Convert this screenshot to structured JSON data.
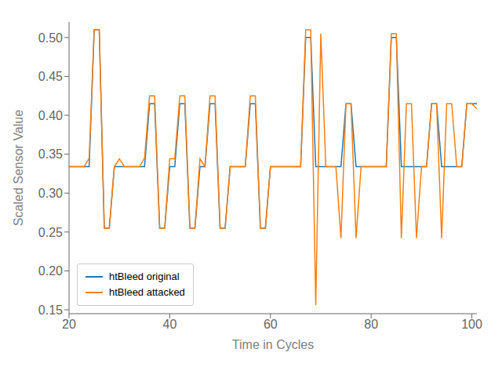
{
  "chart_data": {
    "type": "line",
    "xlabel": "Time in Cycles",
    "ylabel": "Scaled Sensor Value",
    "x": [
      20,
      21,
      22,
      23,
      24,
      25,
      26,
      27,
      28,
      29,
      30,
      31,
      32,
      33,
      34,
      35,
      36,
      37,
      38,
      39,
      40,
      41,
      42,
      43,
      44,
      45,
      46,
      47,
      48,
      49,
      50,
      51,
      52,
      53,
      54,
      55,
      56,
      57,
      58,
      59,
      60,
      61,
      62,
      63,
      64,
      65,
      66,
      67,
      68,
      69,
      70,
      71,
      72,
      73,
      74,
      75,
      76,
      77,
      78,
      79,
      80,
      81,
      82,
      83,
      84,
      85,
      86,
      87,
      88,
      89,
      90,
      91,
      92,
      93,
      94,
      95,
      96,
      97,
      98,
      99,
      100,
      101
    ],
    "series": [
      {
        "name": "htBleed original",
        "color": "#1f77b4",
        "values": [
          0.334,
          0.334,
          0.334,
          0.334,
          0.334,
          0.51,
          0.51,
          0.255,
          0.255,
          0.334,
          0.334,
          0.334,
          0.334,
          0.334,
          0.334,
          0.334,
          0.415,
          0.415,
          0.255,
          0.255,
          0.334,
          0.334,
          0.415,
          0.415,
          0.255,
          0.255,
          0.334,
          0.334,
          0.415,
          0.415,
          0.255,
          0.255,
          0.334,
          0.334,
          0.334,
          0.334,
          0.415,
          0.415,
          0.255,
          0.255,
          0.334,
          0.334,
          0.334,
          0.334,
          0.334,
          0.334,
          0.334,
          0.5,
          0.5,
          0.334,
          0.334,
          0.334,
          0.334,
          0.334,
          0.334,
          0.415,
          0.415,
          0.334,
          0.334,
          0.334,
          0.334,
          0.334,
          0.334,
          0.334,
          0.5,
          0.5,
          0.334,
          0.334,
          0.334,
          0.334,
          0.334,
          0.334,
          0.415,
          0.415,
          0.334,
          0.334,
          0.334,
          0.334,
          0.334,
          0.415,
          0.415,
          0.415
        ]
      },
      {
        "name": "htBleed attacked",
        "color": "#ff7f0e",
        "values": [
          0.334,
          0.334,
          0.334,
          0.334,
          0.345,
          0.51,
          0.51,
          0.255,
          0.255,
          0.334,
          0.344,
          0.334,
          0.334,
          0.334,
          0.334,
          0.345,
          0.425,
          0.425,
          0.255,
          0.255,
          0.344,
          0.344,
          0.425,
          0.425,
          0.255,
          0.255,
          0.344,
          0.334,
          0.425,
          0.425,
          0.255,
          0.255,
          0.334,
          0.334,
          0.334,
          0.334,
          0.425,
          0.425,
          0.255,
          0.255,
          0.334,
          0.334,
          0.334,
          0.334,
          0.334,
          0.334,
          0.334,
          0.51,
          0.51,
          0.156,
          0.505,
          0.334,
          0.334,
          0.334,
          0.242,
          0.415,
          0.415,
          0.242,
          0.334,
          0.334,
          0.334,
          0.334,
          0.334,
          0.334,
          0.505,
          0.505,
          0.242,
          0.415,
          0.415,
          0.242,
          0.334,
          0.334,
          0.415,
          0.415,
          0.242,
          0.415,
          0.415,
          0.334,
          0.334,
          0.415,
          0.415,
          0.408
        ]
      }
    ],
    "xlim": [
      20,
      101
    ],
    "ylim": [
      0.145,
      0.52
    ],
    "xticks": [
      20,
      40,
      60,
      80,
      100
    ],
    "yticks": [
      0.15,
      {
        "value": 0.2,
        "label": "0.20"
      },
      0.25,
      {
        "value": 0.3,
        "label": "0.30"
      },
      0.35,
      {
        "value": 0.4,
        "label": "0.40"
      },
      0.45,
      {
        "value": 0.5,
        "label": "0.50"
      }
    ],
    "legend": "lower left",
    "grid": false
  }
}
